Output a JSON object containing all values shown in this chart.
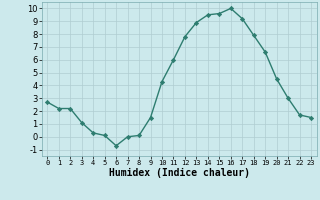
{
  "x": [
    0,
    1,
    2,
    3,
    4,
    5,
    6,
    7,
    8,
    9,
    10,
    11,
    12,
    13,
    14,
    15,
    16,
    17,
    18,
    19,
    20,
    21,
    22,
    23
  ],
  "y": [
    2.7,
    2.2,
    2.2,
    1.1,
    0.3,
    0.1,
    -0.7,
    0.0,
    0.1,
    1.5,
    4.3,
    6.0,
    7.8,
    8.9,
    9.5,
    9.6,
    10.0,
    9.2,
    7.9,
    6.6,
    4.5,
    3.0,
    1.7,
    1.5
  ],
  "line_color": "#2e7d70",
  "marker": "D",
  "marker_size": 2.2,
  "line_width": 1.0,
  "bg_color": "#cce9ec",
  "grid_color": "#b0cdd1",
  "xlabel": "Humidex (Indice chaleur)",
  "xlabel_fontsize": 7,
  "tick_fontsize": 6,
  "xlim": [
    -0.5,
    23.5
  ],
  "ylim": [
    -1.5,
    10.5
  ],
  "yticks": [
    -1,
    0,
    1,
    2,
    3,
    4,
    5,
    6,
    7,
    8,
    9,
    10
  ],
  "xticks": [
    0,
    1,
    2,
    3,
    4,
    5,
    6,
    7,
    8,
    9,
    10,
    11,
    12,
    13,
    14,
    15,
    16,
    17,
    18,
    19,
    20,
    21,
    22,
    23
  ]
}
